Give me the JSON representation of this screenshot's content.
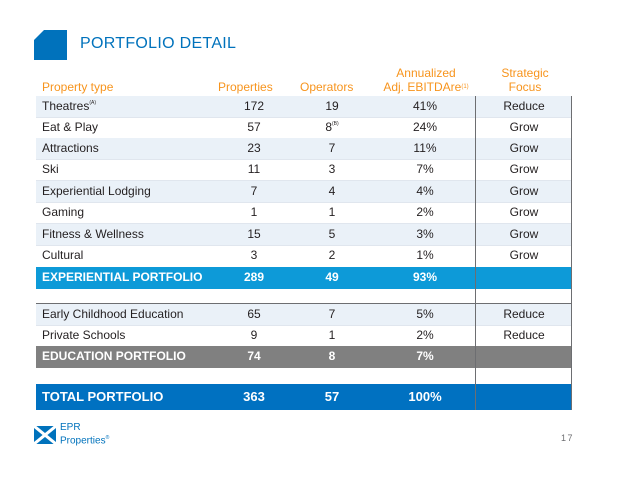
{
  "title": "PORTFOLIO DETAIL",
  "headers": {
    "type": "Property type",
    "properties": "Properties",
    "operators": "Operators",
    "ebitdare_line1": "Annualized",
    "ebitdare_line2": "Adj. EBITDAre",
    "ebitdare_note": "(1)",
    "focus_line1": "Strategic",
    "focus_line2": "Focus"
  },
  "experiential_rows": [
    {
      "type": "Theatres",
      "type_note": "(A)",
      "properties": "172",
      "operators": "19",
      "operators_note": "",
      "ebitdare": "41%",
      "focus": "Reduce"
    },
    {
      "type": "Eat & Play",
      "type_note": "",
      "properties": "57",
      "operators": "8",
      "operators_note": "(B)",
      "ebitdare": "24%",
      "focus": "Grow"
    },
    {
      "type": "Attractions",
      "type_note": "",
      "properties": "23",
      "operators": "7",
      "operators_note": "",
      "ebitdare": "11%",
      "focus": "Grow"
    },
    {
      "type": "Ski",
      "type_note": "",
      "properties": "11",
      "operators": "3",
      "operators_note": "",
      "ebitdare": "7%",
      "focus": "Grow"
    },
    {
      "type": "Experiential Lodging",
      "type_note": "",
      "properties": "7",
      "operators": "4",
      "operators_note": "",
      "ebitdare": "4%",
      "focus": "Grow"
    },
    {
      "type": "Gaming",
      "type_note": "",
      "properties": "1",
      "operators": "1",
      "operators_note": "",
      "ebitdare": "2%",
      "focus": "Grow"
    },
    {
      "type": "Fitness & Wellness",
      "type_note": "",
      "properties": "15",
      "operators": "5",
      "operators_note": "",
      "ebitdare": "3%",
      "focus": "Grow"
    },
    {
      "type": "Cultural",
      "type_note": "",
      "properties": "3",
      "operators": "2",
      "operators_note": "",
      "ebitdare": "1%",
      "focus": "Grow"
    }
  ],
  "experiential_total": {
    "type": "EXPERIENTIAL PORTFOLIO",
    "properties": "289",
    "operators": "49",
    "ebitdare": "93%"
  },
  "education_rows": [
    {
      "type": "Early Childhood Education",
      "properties": "65",
      "operators": "7",
      "ebitdare": "5%",
      "focus": "Reduce"
    },
    {
      "type": "Private Schools",
      "properties": "9",
      "operators": "1",
      "ebitdare": "2%",
      "focus": "Reduce"
    }
  ],
  "education_total": {
    "type": "EDUCATION PORTFOLIO",
    "properties": "74",
    "operators": "8",
    "ebitdare": "7%"
  },
  "total": {
    "type": "TOTAL PORTFOLIO",
    "properties": "363",
    "operators": "57",
    "ebitdare": "100%"
  },
  "logo": {
    "line1": "EPR",
    "line2": "Properties",
    "mark": "®"
  },
  "page_number": "17",
  "colors": {
    "brand_blue": "#0072bc",
    "header_orange": "#f7941d",
    "experiential_bar": "#0d9ad8",
    "education_bar": "#808080",
    "total_bar": "#0071c1",
    "row_tint": "#eaf1f8"
  }
}
